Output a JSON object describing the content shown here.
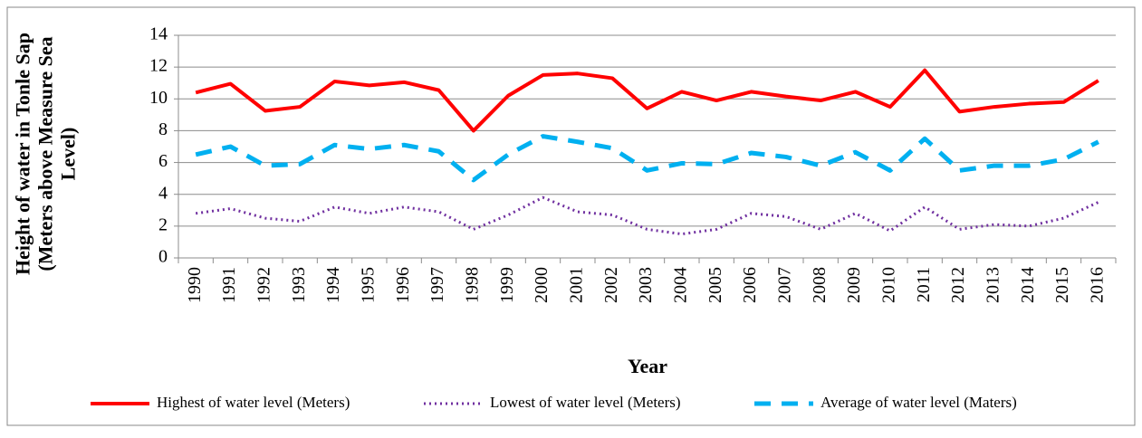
{
  "chart_data": {
    "type": "line",
    "ylabel": "Height of water in Tonle Sap (Meters above Measure Sea Level)",
    "xlabel": "Year",
    "categories": [
      "1990",
      "1991",
      "1992",
      "1993",
      "1994",
      "1995",
      "1996",
      "1997",
      "1998",
      "1999",
      "2000",
      "2001",
      "2002",
      "2003",
      "2004",
      "2005",
      "2006",
      "2007",
      "2008",
      "2009",
      "2010",
      "2011",
      "2012",
      "2013",
      "2014",
      "2015",
      "2016"
    ],
    "series": [
      {
        "name": "Highest of water level (Meters)",
        "color": "#ff0000",
        "style": "solid",
        "values": [
          10.4,
          10.95,
          9.25,
          9.5,
          11.1,
          10.85,
          11.05,
          10.55,
          8.0,
          10.2,
          11.5,
          11.6,
          11.3,
          9.4,
          10.45,
          9.9,
          10.45,
          10.15,
          9.9,
          10.45,
          9.5,
          11.8,
          9.2,
          9.5,
          9.7,
          9.8,
          11.15
        ]
      },
      {
        "name": "Lowest of water level (Meters)",
        "color": "#7030a0",
        "style": "dotted",
        "values": [
          2.8,
          3.1,
          2.5,
          2.3,
          3.2,
          2.8,
          3.2,
          2.9,
          1.8,
          2.7,
          3.8,
          2.9,
          2.7,
          1.8,
          1.5,
          1.8,
          2.8,
          2.6,
          1.8,
          2.8,
          1.7,
          3.2,
          1.8,
          2.1,
          2.0,
          2.5,
          3.5
        ]
      },
      {
        "name": "Average of water level (Maters)",
        "color": "#00b0f0",
        "style": "dashed",
        "values": [
          6.5,
          7.0,
          5.8,
          5.9,
          7.1,
          6.85,
          7.1,
          6.7,
          4.9,
          6.5,
          7.65,
          7.3,
          6.9,
          5.5,
          5.95,
          5.9,
          6.6,
          6.35,
          5.8,
          6.65,
          5.5,
          7.5,
          5.5,
          5.8,
          5.8,
          6.2,
          7.3
        ]
      }
    ],
    "ylim": [
      0,
      14
    ],
    "yticks": [
      0,
      2,
      4,
      6,
      8,
      10,
      12,
      14
    ],
    "grid": true,
    "legend": "bottom"
  }
}
